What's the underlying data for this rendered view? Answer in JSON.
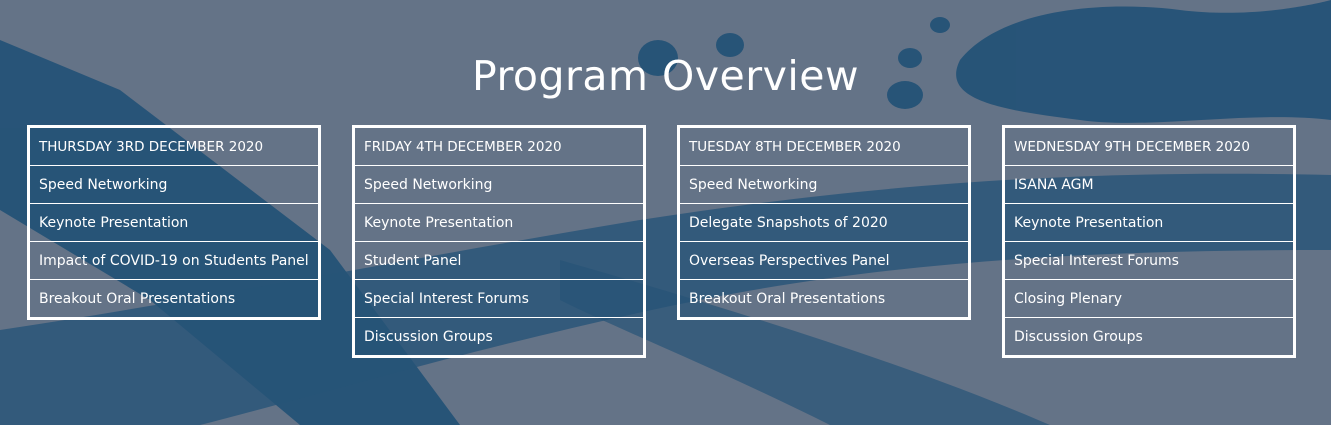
{
  "title": "Program Overview",
  "colors": {
    "background": "#647387",
    "accent_blob": "#1d4f75",
    "text": "#ffffff"
  },
  "days": [
    {
      "heading": "THURSDAY 3RD DECEMBER 2020",
      "items": [
        "Speed Networking",
        "Keynote Presentation",
        "Impact of COVID-19 on Students Panel",
        "Breakout Oral Presentations"
      ]
    },
    {
      "heading": "FRIDAY 4TH DECEMBER 2020",
      "items": [
        "Speed Networking",
        "Keynote Presentation",
        "Student Panel",
        "Special Interest Forums",
        "Discussion Groups"
      ]
    },
    {
      "heading": "TUESDAY 8TH DECEMBER 2020",
      "items": [
        "Speed Networking",
        "Delegate Snapshots of 2020",
        "Overseas Perspectives Panel",
        "Breakout Oral Presentations"
      ]
    },
    {
      "heading": "WEDNESDAY 9TH DECEMBER 2020",
      "items": [
        "ISANA AGM",
        "Keynote Presentation",
        "Special Interest Forums",
        "Closing Plenary",
        "Discussion Groups"
      ]
    }
  ]
}
